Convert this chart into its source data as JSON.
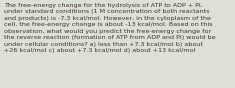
{
  "text": "The free-energy change for the hydrolysis of ATP to ADP + Pi,\nunder standard conditions (1 M concentration of both reactants\nand products) is -7.3 kcal/mol. However, in the cytoplasm of the\ncell, the free-energy change is about -13 kcal/mol. Based on this\nobservation, what would you predict the free-energy change for\nthe reverse reaction (formation of ATP from ADP and Pi) would be\nunder cellular conditions? a) less than +7.3 kcal/mol b) about\n+26 kcal/mol c) about +7.3 kcal/mol d) about +13 kcal/mol",
  "bg_color": "#dde0d4",
  "text_color": "#3a3530",
  "font_size": 4.6,
  "fig_width": 2.35,
  "fig_height": 0.88,
  "linespacing": 1.38
}
